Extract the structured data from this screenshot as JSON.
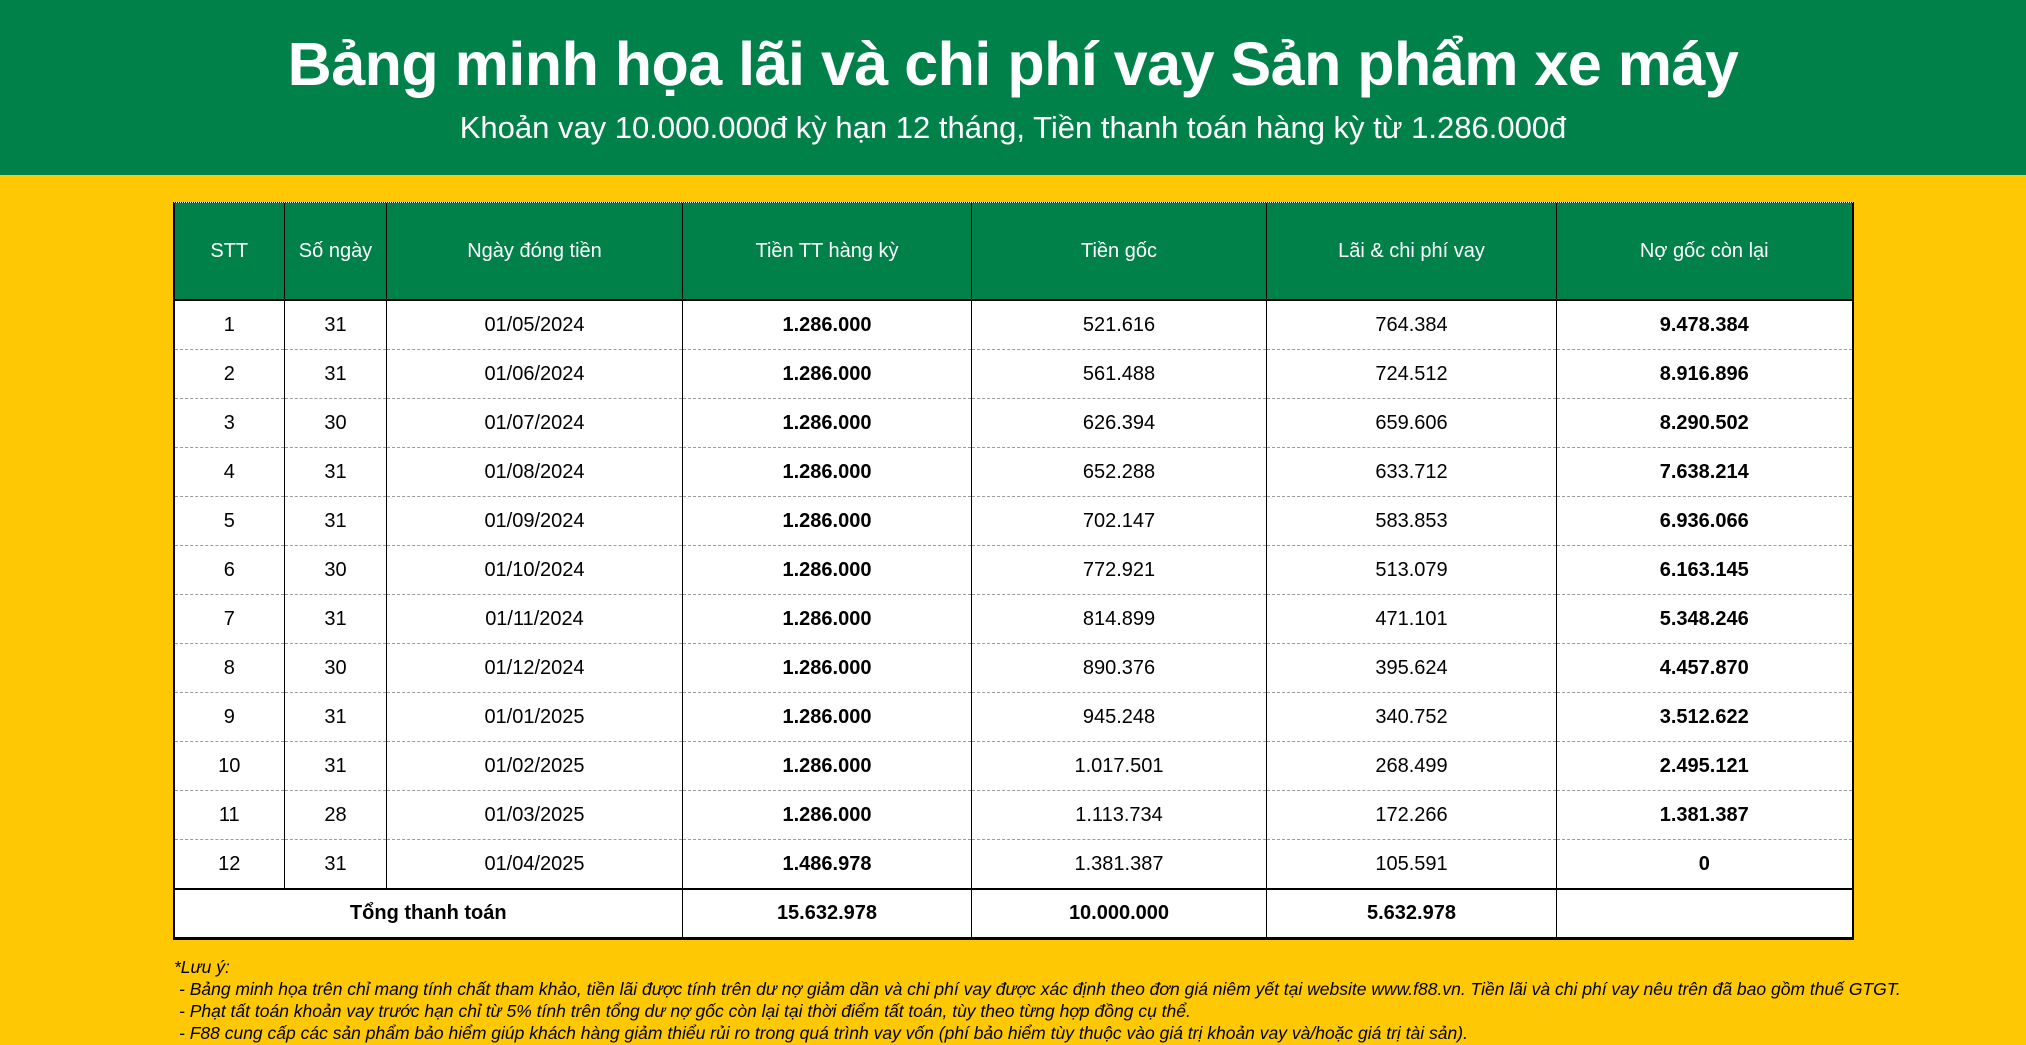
{
  "banner": {
    "title": "Bảng minh họa lãi và chi phí vay Sản phẩm xe máy",
    "subtitle": "Khoản vay 10.000.000đ kỳ hạn 12 tháng, Tiền thanh toán hàng kỳ từ 1.286.000đ"
  },
  "table": {
    "headers": [
      "STT",
      "Số ngày",
      "Ngày đóng tiền",
      "Tiền TT hàng kỳ",
      "Tiền gốc",
      "Lãi & chi phí vay",
      "Nợ gốc còn lại"
    ],
    "rows": [
      [
        "1",
        "31",
        "01/05/2024",
        "1.286.000",
        "521.616",
        "764.384",
        "9.478.384"
      ],
      [
        "2",
        "31",
        "01/06/2024",
        "1.286.000",
        "561.488",
        "724.512",
        "8.916.896"
      ],
      [
        "3",
        "30",
        "01/07/2024",
        "1.286.000",
        "626.394",
        "659.606",
        "8.290.502"
      ],
      [
        "4",
        "31",
        "01/08/2024",
        "1.286.000",
        "652.288",
        "633.712",
        "7.638.214"
      ],
      [
        "5",
        "31",
        "01/09/2024",
        "1.286.000",
        "702.147",
        "583.853",
        "6.936.066"
      ],
      [
        "6",
        "30",
        "01/10/2024",
        "1.286.000",
        "772.921",
        "513.079",
        "6.163.145"
      ],
      [
        "7",
        "31",
        "01/11/2024",
        "1.286.000",
        "814.899",
        "471.101",
        "5.348.246"
      ],
      [
        "8",
        "30",
        "01/12/2024",
        "1.286.000",
        "890.376",
        "395.624",
        "4.457.870"
      ],
      [
        "9",
        "31",
        "01/01/2025",
        "1.286.000",
        "945.248",
        "340.752",
        "3.512.622"
      ],
      [
        "10",
        "31",
        "01/02/2025",
        "1.286.000",
        "1.017.501",
        "268.499",
        "2.495.121"
      ],
      [
        "11",
        "28",
        "01/03/2025",
        "1.286.000",
        "1.113.734",
        "172.266",
        "1.381.387"
      ],
      [
        "12",
        "31",
        "01/04/2025",
        "1.486.978",
        "1.381.387",
        "105.591",
        "0"
      ]
    ],
    "total": {
      "label": "Tổng thanh toán",
      "payment": "15.632.978",
      "principal": "10.000.000",
      "interest": "5.632.978",
      "remaining": ""
    }
  },
  "notes": {
    "title": "*Lưu ý:",
    "items": [
      "- Bảng minh họa trên chỉ mang tính chất tham khảo, tiền lãi được tính trên dư nợ giảm dần và chi phí vay được xác định theo đơn giá niêm yết tại website www.f88.vn. Tiền lãi và chi phí vay nêu trên đã bao gồm thuế GTGT.",
      "- Phạt tất toán khoản vay trước hạn chỉ từ 5% tính trên tổng dư nợ gốc còn lại tại thời điểm tất toán, tùy theo từng hợp đồng cụ thể.",
      "- F88 cung cấp các sản phẩm bảo hiểm giúp khách hàng giảm thiểu rủi ro trong quá trình vay vốn (phí bảo hiểm tùy thuộc vào giá trị khoản vay và/hoặc giá trị tài sản)."
    ]
  },
  "colors": {
    "green": "#00814A",
    "yellow": "#FFC805",
    "header_text": "#FFFFFF"
  }
}
